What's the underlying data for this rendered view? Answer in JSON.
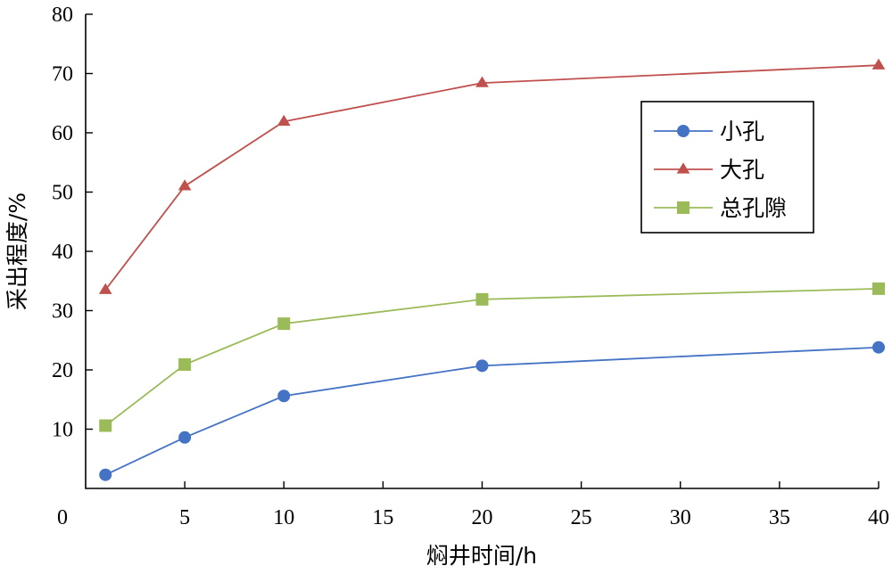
{
  "chart_data": {
    "type": "line",
    "xlabel": "焖井时间/h",
    "ylabel": "采出程度/%",
    "xlim": [
      0,
      40
    ],
    "ylim": [
      0,
      80
    ],
    "x_ticks": [
      "0",
      "5",
      "10",
      "15",
      "20",
      "25",
      "30",
      "35",
      "40"
    ],
    "y_ticks": [
      "10",
      "20",
      "30",
      "40",
      "50",
      "60",
      "70",
      "80"
    ],
    "grid": false,
    "legend_position": "upper-right",
    "x": [
      1,
      5,
      10,
      20,
      40
    ],
    "series": [
      {
        "name": "小孔",
        "color": "#4472C4",
        "marker": "circle",
        "values": [
          2.3,
          8.6,
          15.6,
          20.7,
          23.8
        ]
      },
      {
        "name": "大孔",
        "color": "#C0504D",
        "marker": "triangle",
        "values": [
          33.5,
          51.0,
          61.9,
          68.4,
          71.4
        ]
      },
      {
        "name": "总孔隙",
        "color": "#9BBB59",
        "marker": "square",
        "values": [
          10.6,
          20.9,
          27.8,
          31.9,
          33.7
        ]
      }
    ]
  }
}
